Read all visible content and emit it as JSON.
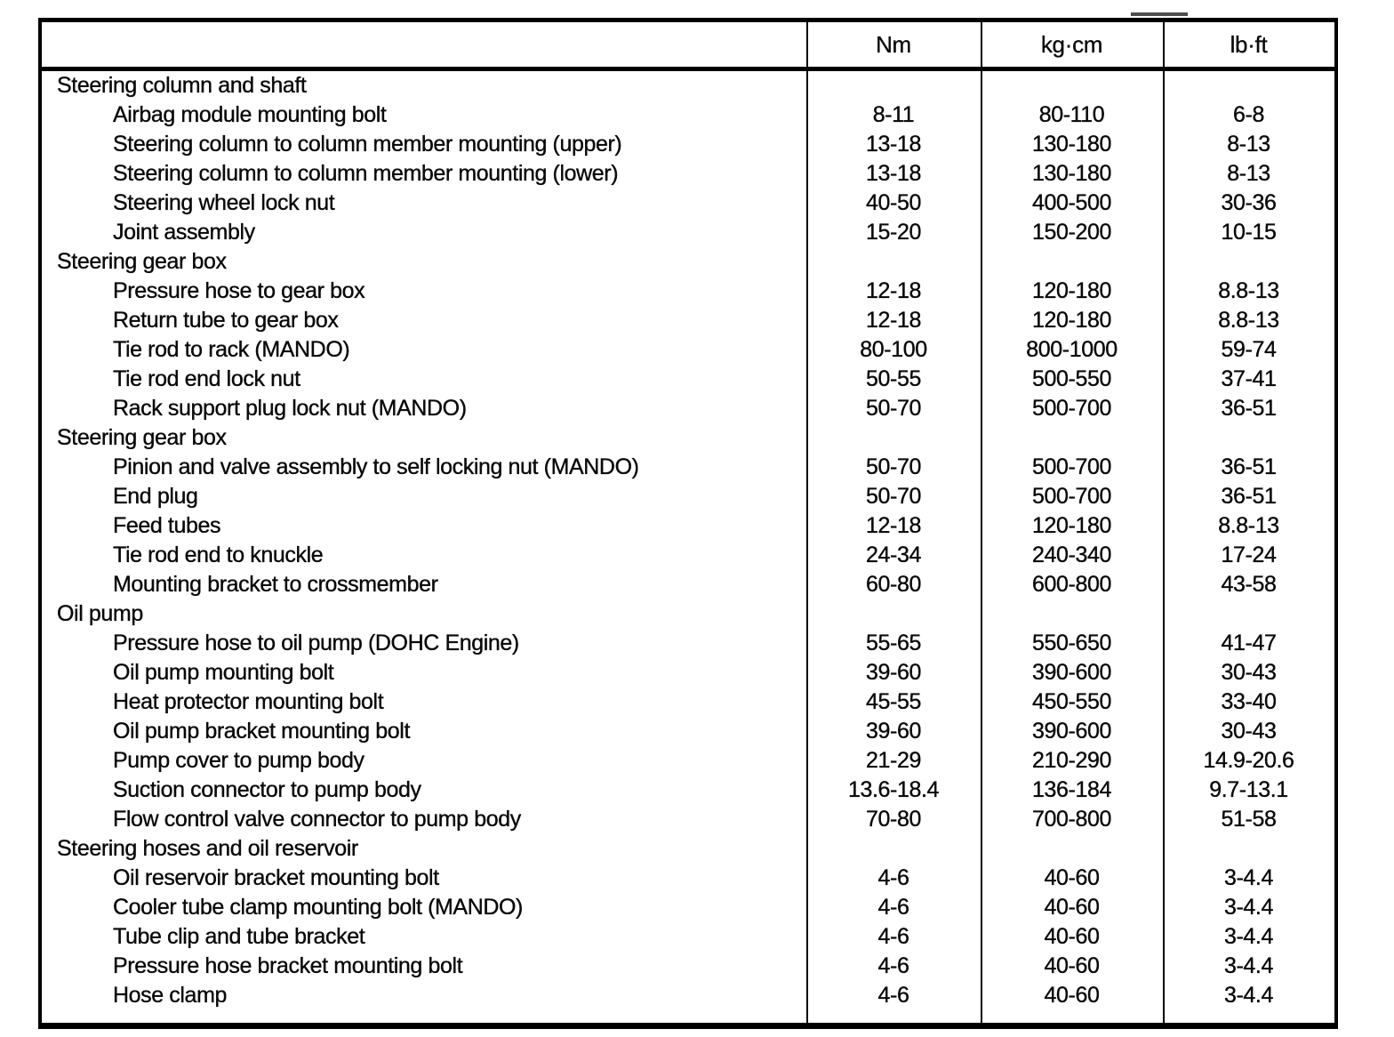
{
  "table": {
    "header": {
      "item": "",
      "nm": "Nm",
      "kgcm": "kg·cm",
      "lbft": "lb·ft"
    },
    "sections": [
      {
        "title": "Steering column and shaft",
        "rows": [
          {
            "label": "Airbag module mounting bolt",
            "nm": "8-11",
            "kgcm": "80-110",
            "lbft": "6-8"
          },
          {
            "label": "Steering column to column member mounting (upper)",
            "nm": "13-18",
            "kgcm": "130-180",
            "lbft": "8-13"
          },
          {
            "label": "Steering column to column member mounting (lower)",
            "nm": "13-18",
            "kgcm": "130-180",
            "lbft": "8-13"
          },
          {
            "label": "Steering wheel lock nut",
            "nm": "40-50",
            "kgcm": "400-500",
            "lbft": "30-36"
          },
          {
            "label": "Joint assembly",
            "nm": "15-20",
            "kgcm": "150-200",
            "lbft": "10-15"
          }
        ]
      },
      {
        "title": "Steering gear box",
        "rows": [
          {
            "label": "Pressure hose to gear box",
            "nm": "12-18",
            "kgcm": "120-180",
            "lbft": "8.8-13"
          },
          {
            "label": "Return tube to gear box",
            "nm": "12-18",
            "kgcm": "120-180",
            "lbft": "8.8-13"
          },
          {
            "label": "Tie rod to rack (MANDO)",
            "nm": "80-100",
            "kgcm": "800-1000",
            "lbft": "59-74"
          },
          {
            "label": "Tie rod end lock nut",
            "nm": "50-55",
            "kgcm": "500-550",
            "lbft": "37-41"
          },
          {
            "label": "Rack support plug lock nut (MANDO)",
            "nm": "50-70",
            "kgcm": "500-700",
            "lbft": "36-51"
          }
        ]
      },
      {
        "title": "Steering gear box",
        "rows": [
          {
            "label": "Pinion and valve assembly to self locking nut (MANDO)",
            "nm": "50-70",
            "kgcm": "500-700",
            "lbft": "36-51"
          },
          {
            "label": "End plug",
            "nm": "50-70",
            "kgcm": "500-700",
            "lbft": "36-51"
          },
          {
            "label": "Feed tubes",
            "nm": "12-18",
            "kgcm": "120-180",
            "lbft": "8.8-13"
          },
          {
            "label": "Tie rod end to knuckle",
            "nm": "24-34",
            "kgcm": "240-340",
            "lbft": "17-24"
          },
          {
            "label": "Mounting bracket to crossmember",
            "nm": "60-80",
            "kgcm": "600-800",
            "lbft": "43-58"
          }
        ]
      },
      {
        "title": "Oil pump",
        "rows": [
          {
            "label": "Pressure hose to oil pump (DOHC Engine)",
            "nm": "55-65",
            "kgcm": "550-650",
            "lbft": "41-47"
          },
          {
            "label": "Oil pump mounting bolt",
            "nm": "39-60",
            "kgcm": "390-600",
            "lbft": "30-43"
          },
          {
            "label": "Heat protector mounting bolt",
            "nm": "45-55",
            "kgcm": "450-550",
            "lbft": "33-40"
          },
          {
            "label": "Oil pump bracket mounting bolt",
            "nm": "39-60",
            "kgcm": "390-600",
            "lbft": "30-43"
          },
          {
            "label": "Pump cover to pump body",
            "nm": "21-29",
            "kgcm": "210-290",
            "lbft": "14.9-20.6"
          },
          {
            "label": "Suction connector to pump body",
            "nm": "13.6-18.4",
            "kgcm": "136-184",
            "lbft": "9.7-13.1"
          },
          {
            "label": "Flow control valve connector to pump body",
            "nm": "70-80",
            "kgcm": "700-800",
            "lbft": "51-58"
          }
        ]
      },
      {
        "title": "Steering hoses and oil reservoir",
        "rows": [
          {
            "label": "Oil reservoir bracket mounting bolt",
            "nm": "4-6",
            "kgcm": "40-60",
            "lbft": "3-4.4"
          },
          {
            "label": "Cooler tube clamp mounting bolt (MANDO)",
            "nm": "4-6",
            "kgcm": "40-60",
            "lbft": "3-4.4"
          },
          {
            "label": "Tube clip and tube bracket",
            "nm": "4-6",
            "kgcm": "40-60",
            "lbft": "3-4.4"
          },
          {
            "label": "Pressure hose bracket mounting bolt",
            "nm": "4-6",
            "kgcm": "40-60",
            "lbft": "3-4.4"
          },
          {
            "label": "Hose clamp",
            "nm": "4-6",
            "kgcm": "40-60",
            "lbft": "3-4.4"
          }
        ]
      }
    ]
  }
}
